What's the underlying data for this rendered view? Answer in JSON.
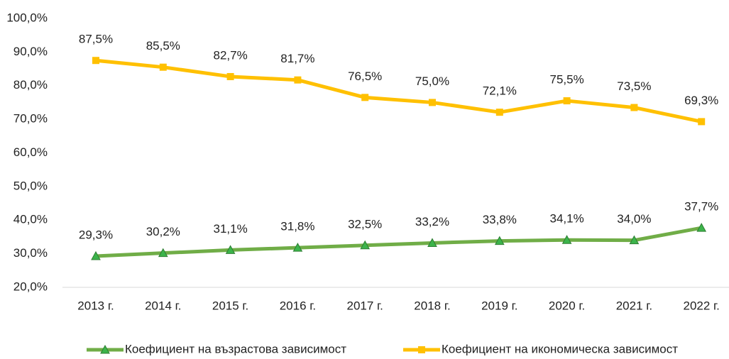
{
  "chart_data": {
    "type": "line",
    "categories": [
      "2013 г.",
      "2014 г.",
      "2015 г.",
      "2016 г.",
      "2017 г.",
      "2018 г.",
      "2019 г.",
      "2020 г.",
      "2021 г.",
      "2022 г."
    ],
    "series": [
      {
        "name": "Коефициент на възрастова зависимост",
        "color": "#70ad47",
        "marker": "triangle",
        "values": [
          29.3,
          30.2,
          31.1,
          31.8,
          32.5,
          33.2,
          33.8,
          34.1,
          34.0,
          37.7
        ],
        "value_labels": [
          "29,3%",
          "30,2%",
          "31,1%",
          "31,8%",
          "32,5%",
          "33,2%",
          "33,8%",
          "34,1%",
          "34,0%",
          "37,7%"
        ]
      },
      {
        "name": "Коефициент на икономическа зависимост",
        "color": "#ffc000",
        "marker": "square",
        "values": [
          87.5,
          85.5,
          82.7,
          81.7,
          76.5,
          75.0,
          72.1,
          75.5,
          73.5,
          69.3
        ],
        "value_labels": [
          "87,5%",
          "85,5%",
          "82,7%",
          "81,7%",
          "76,5%",
          "75,0%",
          "72,1%",
          "75,5%",
          "73,5%",
          "69,3%"
        ]
      }
    ],
    "ylim": [
      20,
      100
    ],
    "yticks": [
      {
        "value": 20,
        "label": "20,0%"
      },
      {
        "value": 30,
        "label": "30,0%"
      },
      {
        "value": 40,
        "label": "40,0%"
      },
      {
        "value": 50,
        "label": "50,0%"
      },
      {
        "value": 60,
        "label": "60,0%"
      },
      {
        "value": 70,
        "label": "70,0%"
      },
      {
        "value": 80,
        "label": "80,0%"
      },
      {
        "value": 90,
        "label": "90,0%"
      },
      {
        "value": 100,
        "label": "100,0%"
      }
    ],
    "grid": false,
    "legend": "bottom"
  }
}
